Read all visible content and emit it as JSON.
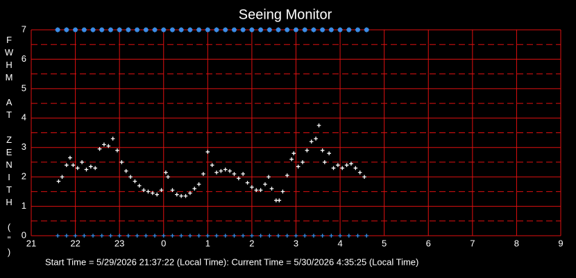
{
  "chart_data": {
    "type": "scatter",
    "title": "Seeing Monitor",
    "ylabel": "FWHM AT ZENITH (\")",
    "footer": "Start Time = 5/29/2026 21:37:22 (Local Time):  Current Time = 5/30/2026 4:35:25 (Local Time)",
    "xlim": [
      21,
      33
    ],
    "ylim": [
      0,
      7
    ],
    "xticks": [
      21,
      22,
      23,
      {
        "value": 24,
        "label": "0"
      },
      {
        "value": 25,
        "label": "1"
      },
      {
        "value": 26,
        "label": "2"
      },
      {
        "value": 27,
        "label": "3"
      },
      {
        "value": 28,
        "label": "4"
      },
      {
        "value": 29,
        "label": "5"
      },
      {
        "value": 30,
        "label": "6"
      },
      {
        "value": 31,
        "label": "7"
      },
      {
        "value": 32,
        "label": "8"
      },
      {
        "value": 33,
        "label": "9"
      }
    ],
    "yticks": [
      0,
      1,
      2,
      3,
      4,
      5,
      6,
      7
    ],
    "minor_grid_y": [
      0.5,
      1.5,
      2.5,
      3.5,
      4.5,
      5.5,
      6.5
    ],
    "grid": true,
    "grid_color": "#e01010",
    "background": "#000000",
    "series": [
      {
        "color": "#ffffff",
        "marker": "plus",
        "x": [
          21.62,
          21.7,
          21.8,
          21.88,
          21.95,
          22.05,
          22.15,
          22.25,
          22.35,
          22.45,
          22.55,
          22.65,
          22.75,
          22.85,
          22.95,
          23.05,
          23.15,
          23.25,
          23.35,
          23.45,
          23.55,
          23.65,
          23.75,
          23.85,
          23.95,
          24.05,
          24.1,
          24.2,
          24.3,
          24.4,
          24.5,
          24.6,
          24.7,
          24.8,
          24.9,
          25.0,
          25.1,
          25.2,
          25.3,
          25.4,
          25.5,
          25.6,
          25.7,
          25.8,
          25.9,
          26.0,
          26.1,
          26.2,
          26.3,
          26.38,
          26.45,
          26.55,
          26.62,
          26.7,
          26.8,
          26.9,
          26.95,
          27.05,
          27.15,
          27.25,
          27.35,
          27.45,
          27.52,
          27.6,
          27.65,
          27.75,
          27.85,
          27.95,
          28.05,
          28.15,
          28.25,
          28.35,
          28.45,
          28.55
        ],
        "values": [
          1.85,
          2.0,
          2.4,
          2.65,
          2.4,
          2.3,
          2.5,
          2.25,
          2.35,
          2.3,
          2.95,
          3.1,
          3.05,
          3.3,
          2.9,
          2.5,
          2.2,
          2.0,
          1.85,
          1.7,
          1.55,
          1.5,
          1.45,
          1.4,
          1.55,
          2.15,
          2.0,
          1.55,
          1.4,
          1.35,
          1.35,
          1.45,
          1.6,
          1.75,
          2.1,
          2.85,
          2.4,
          2.15,
          2.2,
          2.25,
          2.2,
          2.1,
          1.95,
          2.1,
          1.8,
          1.65,
          1.55,
          1.55,
          1.75,
          2.0,
          1.6,
          1.2,
          1.2,
          1.5,
          2.05,
          2.6,
          2.8,
          2.35,
          2.5,
          2.9,
          3.2,
          3.3,
          3.75,
          2.9,
          2.5,
          2.8,
          2.3,
          2.4,
          2.3,
          2.4,
          2.45,
          2.3,
          2.15,
          2.0
        ]
      },
      {
        "color": "#3a8ee8",
        "marker": "star",
        "x": [
          21.6,
          21.8,
          22.0,
          22.2,
          22.4,
          22.6,
          22.8,
          23.0,
          23.2,
          23.4,
          23.6,
          23.8,
          24.0,
          24.2,
          24.4,
          24.6,
          24.8,
          25.0,
          25.2,
          25.4,
          25.6,
          25.8,
          26.0,
          26.2,
          26.4,
          26.6,
          26.8,
          27.0,
          27.2,
          27.4,
          27.6,
          27.8,
          28.0,
          28.2,
          28.4,
          28.6
        ],
        "values": [
          7,
          7,
          7,
          7,
          7,
          7,
          7,
          7,
          7,
          7,
          7,
          7,
          7,
          7,
          7,
          7,
          7,
          7,
          7,
          7,
          7,
          7,
          7,
          7,
          7,
          7,
          7,
          7,
          7,
          7,
          7,
          7,
          7,
          7,
          7,
          7
        ]
      },
      {
        "color": "#3a8ee8",
        "marker": "plus",
        "x": [
          21.6,
          21.8,
          22.0,
          22.2,
          22.4,
          22.6,
          22.8,
          23.0,
          23.2,
          23.4,
          23.6,
          23.8,
          24.0,
          24.2,
          24.4,
          24.6,
          24.8,
          25.0,
          25.2,
          25.4,
          25.6,
          25.8,
          26.0,
          26.2,
          26.4,
          26.6,
          26.8,
          27.0,
          27.2,
          27.4,
          27.6,
          27.8,
          28.0,
          28.2,
          28.4,
          28.6
        ],
        "values": [
          0,
          0,
          0,
          0,
          0,
          0,
          0,
          0,
          0,
          0,
          0,
          0,
          0,
          0,
          0,
          0,
          0,
          0,
          0,
          0,
          0,
          0,
          0,
          0,
          0,
          0,
          0,
          0,
          0,
          0,
          0,
          0,
          0,
          0,
          0,
          0
        ]
      }
    ]
  }
}
